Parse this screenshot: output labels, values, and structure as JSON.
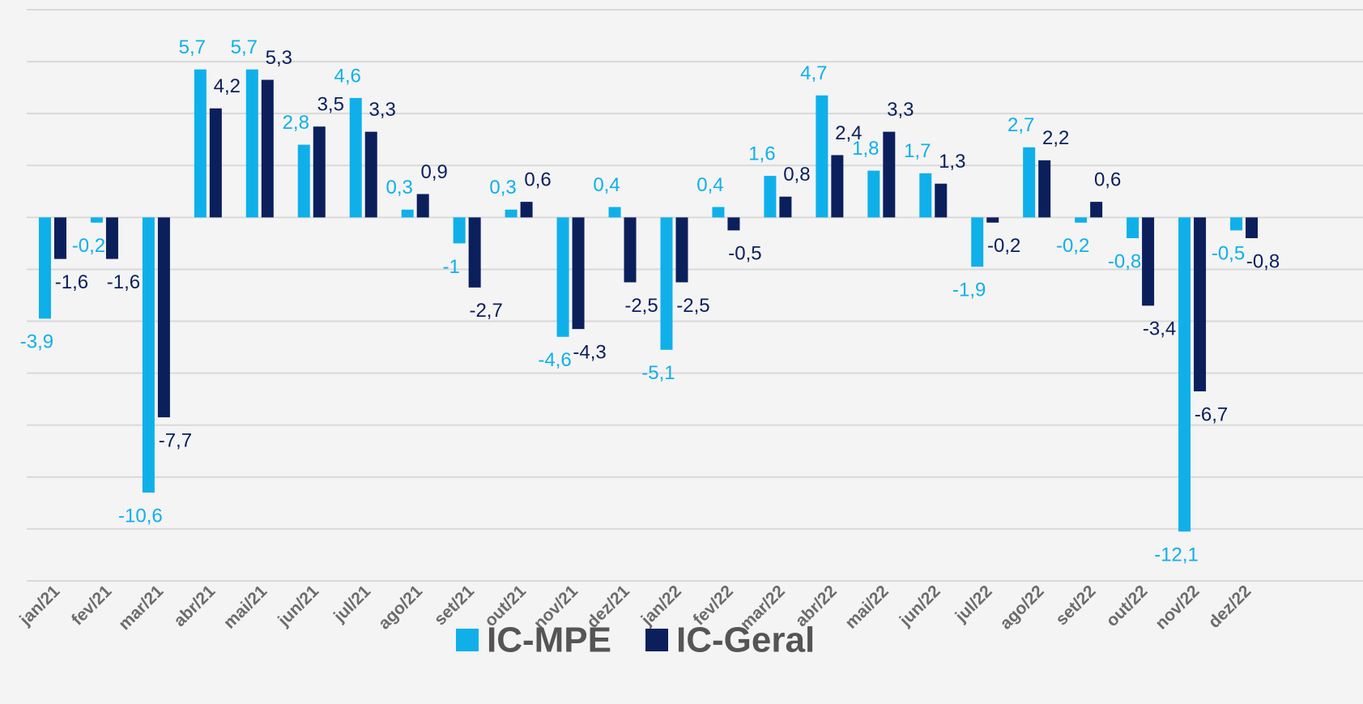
{
  "chart_data": {
    "type": "bar",
    "categories": [
      "jan/21",
      "fev/21",
      "mar/21",
      "abr/21",
      "mai/21",
      "jun/21",
      "jul/21",
      "ago/21",
      "set/21",
      "out/21",
      "nov/21",
      "dez/21",
      "jan/22",
      "fev/22",
      "mar/22",
      "abr/22",
      "mai/22",
      "jun/22",
      "jul/22",
      "ago/22",
      "set/22",
      "out/22",
      "nov/22",
      "dez/22"
    ],
    "series": [
      {
        "name": "IC-MPE",
        "color": "#0fb0ea",
        "values": [
          -3.9,
          -0.2,
          -10.6,
          5.7,
          5.7,
          2.8,
          4.6,
          0.3,
          -1,
          0.3,
          -4.6,
          0.4,
          -5.1,
          0.4,
          1.6,
          4.7,
          1.8,
          1.7,
          -1.9,
          2.7,
          -0.2,
          -0.8,
          -12.1,
          -0.5
        ],
        "value_labels": [
          "-3,9",
          "-0,2",
          "-10,6",
          "5,7",
          "5,7",
          "2,8",
          "4,6",
          "0,3",
          "-1",
          "0,3",
          "-4,6",
          "0,4",
          "-5,1",
          "0,4",
          "1,6",
          "4,7",
          "1,8",
          "1,7",
          "-1,9",
          "2,7",
          "-0,2",
          "-0,8",
          "-12,1",
          "-0,5"
        ]
      },
      {
        "name": "IC-Geral",
        "color": "#0b1f5c",
        "values": [
          -1.6,
          -1.6,
          -7.7,
          4.2,
          5.3,
          3.5,
          3.3,
          0.9,
          -2.7,
          0.6,
          -4.3,
          -2.5,
          -2.5,
          -0.5,
          0.8,
          2.4,
          3.3,
          1.3,
          -0.2,
          2.2,
          0.6,
          -3.4,
          -6.7,
          -0.8
        ],
        "value_labels": [
          "-1,6",
          "-1,6",
          "-7,7",
          "4,2",
          "5,3",
          "3,5",
          "3,3",
          "0,9",
          "-2,7",
          "0,6",
          "-4,3",
          "-2,5",
          "-2,5",
          "-0,5",
          "0,8",
          "2,4",
          "3,3",
          "1,3",
          "-0,2",
          "2,2",
          "0,6",
          "-3,4",
          "-6,7",
          "-0,8"
        ]
      }
    ],
    "ylim": [
      -14,
      8
    ],
    "yticks": [
      -14,
      -12,
      -10,
      -8,
      -6,
      -4,
      -2,
      0,
      2,
      4,
      6,
      8
    ],
    "grid": true,
    "legend": "bottom"
  }
}
